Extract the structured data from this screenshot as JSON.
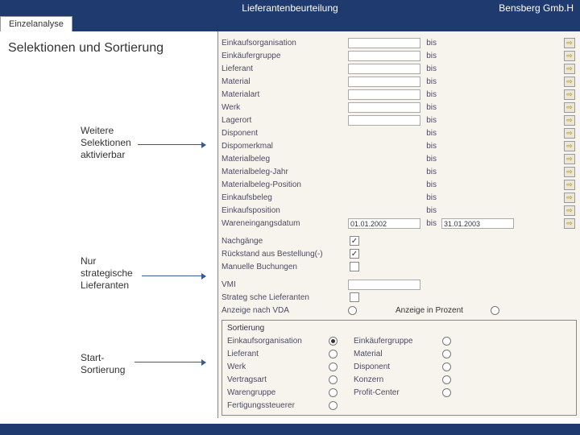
{
  "header": {
    "title": "Lieferantenbeurteilung",
    "company": "Bensberg Gmb.H"
  },
  "tab": {
    "label": "Einzelanalyse"
  },
  "left": {
    "title": "Selektionen und Sortierung",
    "ann1": "Weitere\nSelektionen\naktivierbar",
    "ann2": "Nur\nstrategische\nLieferanten",
    "ann3": "Start-\nSortierung"
  },
  "sel": {
    "bis": "bis",
    "rows": [
      {
        "label": "Einkaufsorganisation",
        "inp": true,
        "inp2": false
      },
      {
        "label": "Einkäufergruppe",
        "inp": true,
        "inp2": false
      },
      {
        "label": "Lieferant",
        "inp": true,
        "inp2": false
      },
      {
        "label": "Material",
        "inp": true,
        "inp2": false
      },
      {
        "label": "Materialart",
        "inp": true,
        "inp2": false
      },
      {
        "label": "Werk",
        "inp": true,
        "inp2": false
      },
      {
        "label": "Lagerort",
        "inp": true,
        "inp2": false
      },
      {
        "label": "Disponent",
        "inp": false,
        "inp2": false
      },
      {
        "label": "Dispomerkmal",
        "inp": false,
        "inp2": false
      },
      {
        "label": "Materialbeleg",
        "inp": false,
        "inp2": false
      },
      {
        "label": "Materialbeleg-Jahr",
        "inp": false,
        "inp2": false
      },
      {
        "label": "Materialbeleg-Position",
        "inp": false,
        "inp2": false
      },
      {
        "label": "Einkaufsbeleg",
        "inp": false,
        "inp2": false
      },
      {
        "label": "Einkaufsposition",
        "inp": false,
        "inp2": false
      },
      {
        "label": "Wareneingangsdatum",
        "inp": true,
        "inp2": true,
        "v1": "01.01.2002",
        "v2": "31.01.2003"
      }
    ],
    "checks": [
      {
        "label": "Nachgänge",
        "checked": true
      },
      {
        "label": "Rückstand aus Bestellung(-)",
        "checked": true
      },
      {
        "label": "Manuelle Buchungen",
        "checked": false
      }
    ],
    "vmi_label": "VMI",
    "strat_label": "Strateg sche Lieferanten",
    "vda_label": "Anzeige nach VDA",
    "percent_label": "Anzeige in Prozent"
  },
  "sort": {
    "title": "Sortierung",
    "rows": [
      {
        "a": "Einkaufsorganisation",
        "achk": true,
        "b": "Einkäufergruppe",
        "bchk": false
      },
      {
        "a": "Lieferant",
        "achk": false,
        "b": "Material",
        "bchk": false
      },
      {
        "a": "Werk",
        "achk": false,
        "b": "Disponent",
        "bchk": false
      },
      {
        "a": "Vertragsart",
        "achk": false,
        "b": "Konzern",
        "bchk": false
      },
      {
        "a": "Warengruppe",
        "achk": false,
        "b": "Profit-Center",
        "bchk": false
      },
      {
        "a": "Fertigungssteuerer",
        "achk": false,
        "b": "",
        "bchk": false
      }
    ]
  }
}
